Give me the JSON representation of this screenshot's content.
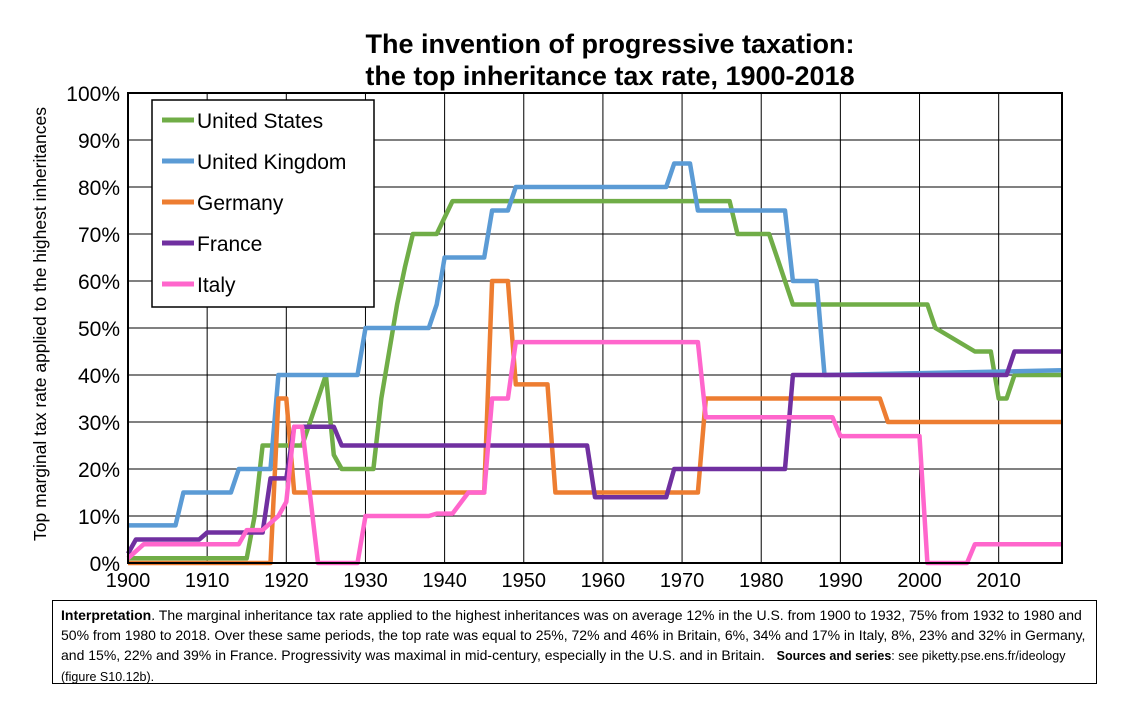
{
  "chart_data": {
    "type": "line",
    "title": "The invention of progressive taxation:",
    "subtitle": "the top inheritance tax rate, 1900-2018",
    "ylabel": "Top marginal tax rate applied to the highest inheritances",
    "xlabel": "",
    "xlim": [
      1900,
      2018
    ],
    "ylim": [
      0,
      100
    ],
    "x_ticks": [
      "1900",
      "1910",
      "1920",
      "1930",
      "1940",
      "1950",
      "1960",
      "1970",
      "1980",
      "1990",
      "2000",
      "2010"
    ],
    "y_ticks": [
      "0%",
      "10%",
      "20%",
      "30%",
      "40%",
      "50%",
      "60%",
      "70%",
      "80%",
      "90%",
      "100%"
    ],
    "grid": true,
    "legend_position": "top-left",
    "series": [
      {
        "name": "United States",
        "color": "#70AD47",
        "points": [
          [
            1900,
            1
          ],
          [
            1915,
            1
          ],
          [
            1916,
            10
          ],
          [
            1917,
            25
          ],
          [
            1922,
            25
          ],
          [
            1924,
            35
          ],
          [
            1925,
            40
          ],
          [
            1926,
            23
          ],
          [
            1927,
            20
          ],
          [
            1931,
            20
          ],
          [
            1932,
            35
          ],
          [
            1934,
            55
          ],
          [
            1935,
            63
          ],
          [
            1936,
            70
          ],
          [
            1939,
            70
          ],
          [
            1941,
            77
          ],
          [
            1976,
            77
          ],
          [
            1977,
            70
          ],
          [
            1981,
            70
          ],
          [
            1982,
            65
          ],
          [
            1984,
            55
          ],
          [
            2001,
            55
          ],
          [
            2002,
            50
          ],
          [
            2007,
            45
          ],
          [
            2009,
            45
          ],
          [
            2010,
            35
          ],
          [
            2011,
            35
          ],
          [
            2012,
            40
          ],
          [
            2018,
            40
          ]
        ]
      },
      {
        "name": "United Kingdom",
        "color": "#5B9BD5",
        "points": [
          [
            1900,
            8
          ],
          [
            1906,
            8
          ],
          [
            1907,
            15
          ],
          [
            1913,
            15
          ],
          [
            1914,
            20
          ],
          [
            1918,
            20
          ],
          [
            1919,
            40
          ],
          [
            1929,
            40
          ],
          [
            1930,
            50
          ],
          [
            1938,
            50
          ],
          [
            1939,
            55
          ],
          [
            1940,
            65
          ],
          [
            1945,
            65
          ],
          [
            1946,
            75
          ],
          [
            1948,
            75
          ],
          [
            1949,
            80
          ],
          [
            1968,
            80
          ],
          [
            1969,
            85
          ],
          [
            1971,
            85
          ],
          [
            1972,
            75
          ],
          [
            1983,
            75
          ],
          [
            1984,
            60
          ],
          [
            1987,
            60
          ],
          [
            1988,
            40
          ],
          [
            2018,
            41
          ]
        ]
      },
      {
        "name": "Germany",
        "color": "#ED7D31",
        "points": [
          [
            1900,
            0
          ],
          [
            1918,
            0
          ],
          [
            1919,
            35
          ],
          [
            1920,
            35
          ],
          [
            1921,
            15
          ],
          [
            1945,
            15
          ],
          [
            1946,
            60
          ],
          [
            1948,
            60
          ],
          [
            1949,
            38
          ],
          [
            1953,
            38
          ],
          [
            1954,
            15
          ],
          [
            1972,
            15
          ],
          [
            1973,
            35
          ],
          [
            1995,
            35
          ],
          [
            1996,
            30
          ],
          [
            2018,
            30
          ]
        ]
      },
      {
        "name": "France",
        "color": "#7030A0",
        "points": [
          [
            1900,
            2
          ],
          [
            1901,
            5
          ],
          [
            1909,
            5
          ],
          [
            1910,
            6.5
          ],
          [
            1917,
            6.5
          ],
          [
            1918,
            18
          ],
          [
            1920,
            18
          ],
          [
            1921,
            29
          ],
          [
            1926,
            29
          ],
          [
            1927,
            25
          ],
          [
            1958,
            25
          ],
          [
            1959,
            14
          ],
          [
            1968,
            14
          ],
          [
            1969,
            20
          ],
          [
            1983,
            20
          ],
          [
            1984,
            40
          ],
          [
            2011,
            40
          ],
          [
            2012,
            45
          ],
          [
            2018,
            45
          ]
        ]
      },
      {
        "name": "Italy",
        "color": "#FF66CC",
        "points": [
          [
            1900,
            1
          ],
          [
            1902,
            4
          ],
          [
            1914,
            4
          ],
          [
            1915,
            7
          ],
          [
            1917,
            7
          ],
          [
            1919,
            10
          ],
          [
            1920,
            13
          ],
          [
            1921,
            29
          ],
          [
            1922,
            29
          ],
          [
            1924,
            0
          ],
          [
            1929,
            0
          ],
          [
            1930,
            10
          ],
          [
            1938,
            10
          ],
          [
            1939,
            10.5
          ],
          [
            1941,
            10.5
          ],
          [
            1943,
            15
          ],
          [
            1945,
            15
          ],
          [
            1946,
            35
          ],
          [
            1948,
            35
          ],
          [
            1949,
            47
          ],
          [
            1972,
            47
          ],
          [
            1973,
            31
          ],
          [
            1989,
            31
          ],
          [
            1990,
            27
          ],
          [
            2000,
            27
          ],
          [
            2001,
            0
          ],
          [
            2006,
            0
          ],
          [
            2007,
            4
          ],
          [
            2018,
            4
          ]
        ]
      }
    ]
  },
  "note": {
    "label": "Interpretation",
    "text": ". The marginal inheritance tax rate applied to the highest inheritances was on average 12% in the U.S. from 1900 to 1932, 75% from 1932 to 1980 and 50% from 1980 to 2018. Over these same periods, the top rate was equal to 25%, 72% and 46% in Britain, 6%, 34% and 17% in Italy, 8%, 23% and 32% in Germany, and 15%, 22% and 39% in France. Progressivity was maximal in mid-century, especially in the U.S. and in Britain.",
    "sources_label": "Sources and series",
    "sources_text": ": see piketty.pse.ens.fr/ideology (figure S10.12b)."
  }
}
